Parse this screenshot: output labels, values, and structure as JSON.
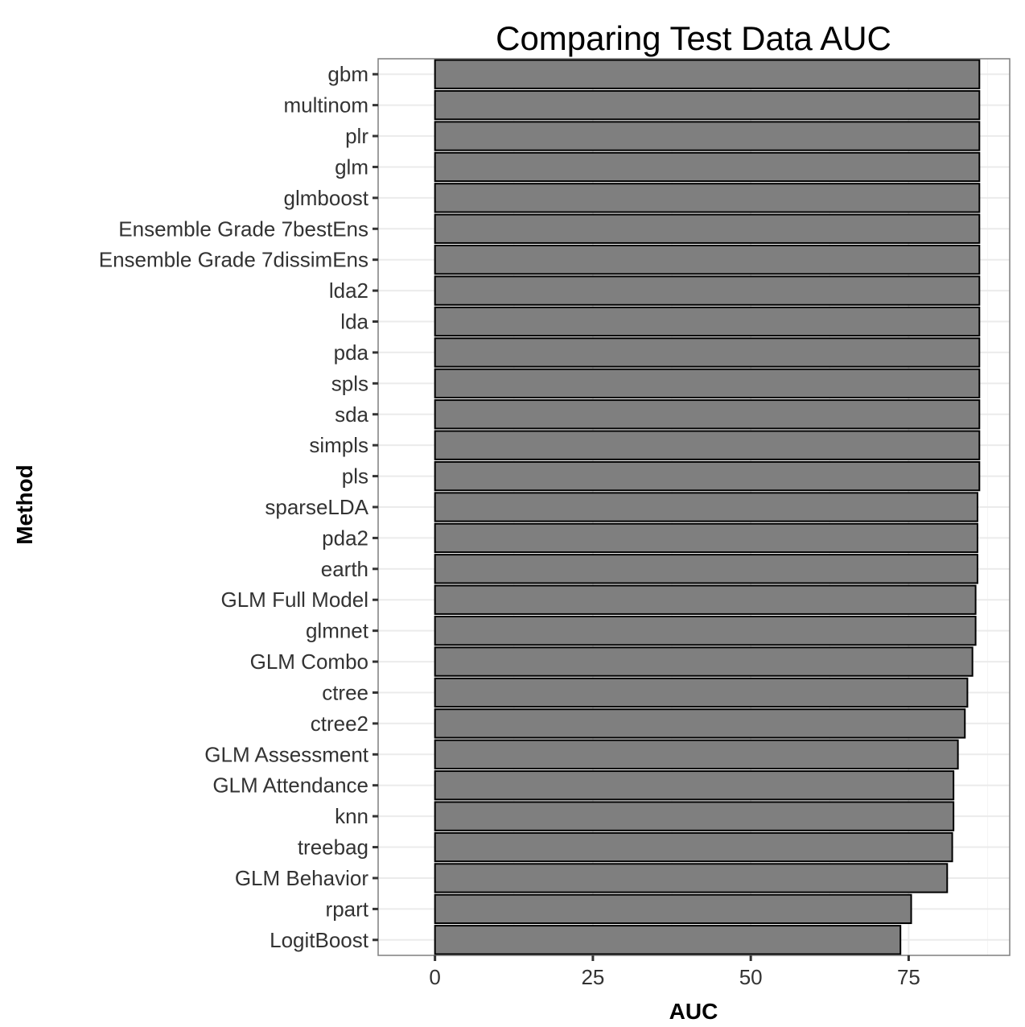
{
  "chart_data": {
    "type": "bar",
    "orientation": "horizontal",
    "title": "Comparing Test Data AUC",
    "xlabel": "AUC",
    "ylabel": "Method",
    "xlim": [
      -9,
      91
    ],
    "x_ticks": [
      0,
      25,
      50,
      75
    ],
    "grid": true,
    "legend": "none",
    "categories": [
      "gbm",
      "multinom",
      "plr",
      "glm",
      "glmboost",
      "Ensemble Grade 7bestEns",
      "Ensemble Grade 7dissimEns",
      "lda2",
      "lda",
      "pda",
      "spls",
      "sda",
      "simpls",
      "pls",
      "sparseLDA",
      "pda2",
      "earth",
      "GLM Full Model",
      "glmnet",
      "GLM Combo",
      "ctree",
      "ctree2",
      "GLM Assessment",
      "GLM Attendance",
      "knn",
      "treebag",
      "GLM Behavior",
      "rpart",
      "LogitBoost"
    ],
    "values": [
      86.2,
      86.2,
      86.2,
      86.2,
      86.2,
      86.2,
      86.2,
      86.2,
      86.2,
      86.2,
      86.2,
      86.2,
      86.2,
      86.2,
      85.9,
      85.9,
      85.9,
      85.6,
      85.6,
      85.1,
      84.3,
      83.9,
      82.8,
      82.1,
      82.1,
      81.9,
      81.1,
      75.4,
      73.7
    ],
    "colors": {
      "bar_fill": "#7f7f7f",
      "bar_stroke": "#000000",
      "grid_major": "#ebebeb",
      "grid_minor": "#f5f5f5",
      "panel_border": "#7f7f7f",
      "tick_text": "#333333",
      "background": "#ffffff"
    }
  }
}
